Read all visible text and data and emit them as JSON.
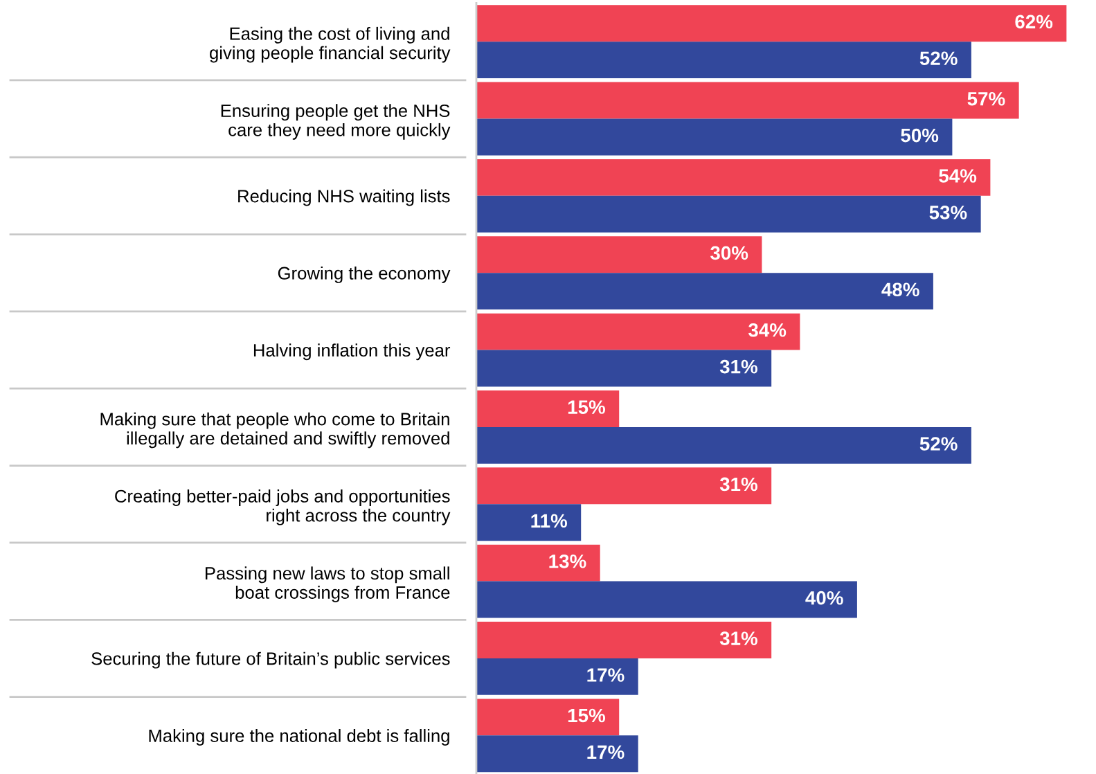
{
  "chart_data": {
    "type": "bar",
    "orientation": "horizontal",
    "categories": [
      "Easing the cost of living and\ngiving people financial security",
      "Ensuring people get the NHS\ncare they need more quickly",
      "Reducing NHS waiting lists",
      "Growing the economy",
      "Halving inflation this year",
      "Making sure that people who come to Britain\nillegally are detained and swiftly removed",
      "Creating better-paid jobs and opportunities\nright across the country",
      "Passing new laws to stop small\nboat crossings from France",
      "Securing the future of Britain’s public services",
      "Making sure the national debt is falling"
    ],
    "series": [
      {
        "color": "#f04354",
        "values": [
          62,
          57,
          54,
          30,
          34,
          15,
          31,
          13,
          31,
          15
        ],
        "value_labels": [
          "62%",
          "57%",
          "54%",
          "30%",
          "34%",
          "15%",
          "31%",
          "13%",
          "31%",
          "15%"
        ]
      },
      {
        "color": "#32489c",
        "values": [
          52,
          50,
          53,
          48,
          31,
          52,
          11,
          40,
          17,
          17
        ],
        "value_labels": [
          "52%",
          "50%",
          "53%",
          "48%",
          "31%",
          "52%",
          "11%",
          "40%",
          "17%",
          "17%"
        ]
      }
    ],
    "grid": false,
    "legend": false
  }
}
